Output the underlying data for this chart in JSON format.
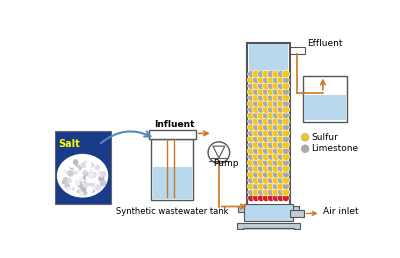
{
  "bg_color": "#ffffff",
  "sulfur_color": "#f5c518",
  "limestone_color": "#a8a8a8",
  "red_bead_color": "#cc2222",
  "orange_color": "#cc7722",
  "blue_water": "#b8d8ed",
  "col_border": "#555555",
  "arrow_blue": "#5588bb",
  "salt_bg": "#1a3a8a",
  "labels": {
    "salt": "Salt",
    "influent": "Influent",
    "pump": "Pump",
    "effluent": "Effluent",
    "air_inlet": "Air inlet",
    "tank": "Synthetic wastewater tank",
    "sulfur": "Sulfur",
    "limestone": "Limestone"
  },
  "fontsize": 6.5
}
